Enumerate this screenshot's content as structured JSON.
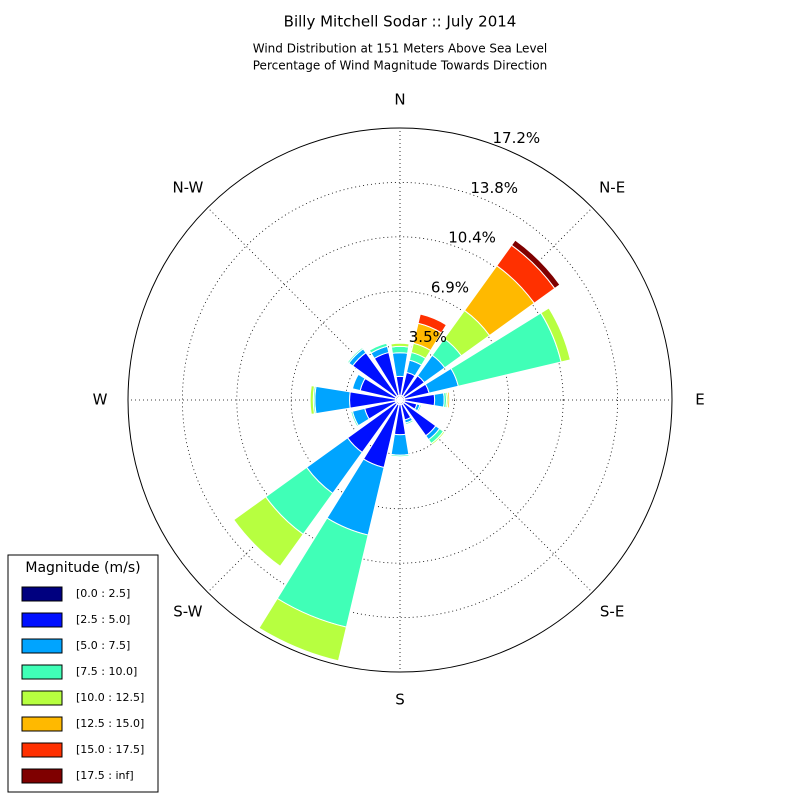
{
  "chart_data": {
    "type": "windrose",
    "title": "Billy Mitchell Sodar :: July 2014",
    "subtitle": [
      "Wind Distribution at 151 Meters Above Sea Level",
      "Percentage of Wind Magnitude Towards Direction"
    ],
    "x": [
      0,
      22.5,
      45,
      67.5,
      90,
      112.5,
      135,
      157.5,
      180,
      202.5,
      225,
      247.5,
      270,
      292.5,
      315,
      337.5
    ],
    "thetaticks": [
      {
        "value": 0,
        "label": "N"
      },
      {
        "value": 45,
        "label": "N-E"
      },
      {
        "value": 90,
        "label": "E"
      },
      {
        "value": 135,
        "label": "S-E"
      },
      {
        "value": 180,
        "label": "S"
      },
      {
        "value": 225,
        "label": "S-W"
      },
      {
        "value": 270,
        "label": "W"
      },
      {
        "value": 315,
        "label": "N-W"
      }
    ],
    "rlim": [
      0,
      17.25
    ],
    "rticks": [
      {
        "value": 3.45,
        "label": "3.5%"
      },
      {
        "value": 6.9,
        "label": "6.9%"
      },
      {
        "value": 10.35,
        "label": "10.4%"
      },
      {
        "value": 13.8,
        "label": "13.8%"
      },
      {
        "value": 17.25,
        "label": "17.2%"
      }
    ],
    "legend_title": "Magnitude (m/s)",
    "legend": "lower left",
    "series": [
      {
        "name": "[0.0 : 2.5]",
        "color": "#00007f",
        "values": [
          0.3,
          0.3,
          0.3,
          0.3,
          0.3,
          0.3,
          0.3,
          0.3,
          0.3,
          0.3,
          0.3,
          0.3,
          0.3,
          0.3,
          0.3,
          0.3
        ]
      },
      {
        "name": "[2.5 : 5.0]",
        "color": "#0010ff",
        "values": [
          1.2,
          1.5,
          1.6,
          1.6,
          1.9,
          0.8,
          2.5,
          1.0,
          1.9,
          4.1,
          3.8,
          2.0,
          2.9,
          2.3,
          3.4,
          2.8
        ]
      },
      {
        "name": "[5.0 : 7.5]",
        "color": "#00a4ff",
        "values": [
          1.5,
          0.8,
          1.6,
          1.9,
          0.6,
          0.2,
          0.3,
          0.2,
          1.3,
          4.4,
          3.2,
          0.8,
          2.2,
          0.5,
          0.3,
          0.4
        ]
      },
      {
        "name": "[7.5 : 10.0]",
        "color": "#40ffb7",
        "values": [
          0.4,
          0.5,
          1.3,
          6.7,
          0.15,
          0.1,
          0.3,
          0.1,
          0.1,
          6.0,
          3.2,
          0.1,
          0.1,
          0,
          0.1,
          0.2
        ]
      },
      {
        "name": "[10.0 : 12.5]",
        "color": "#b7ff40",
        "values": [
          0.2,
          0.6,
          2.2,
          0.6,
          0.1,
          0.05,
          0.1,
          0,
          0,
          2.2,
          2.5,
          0,
          0.2,
          0,
          0,
          0
        ]
      },
      {
        "name": "[12.5 : 15.0]",
        "color": "#ffb900",
        "values": [
          0,
          1.3,
          3.5,
          0,
          0.1,
          0,
          0,
          0,
          0,
          0,
          0,
          0,
          0,
          0,
          0,
          0
        ]
      },
      {
        "name": "[15.0 : 17.5]",
        "color": "#ff3000",
        "values": [
          0,
          0.6,
          1.6,
          0,
          0,
          0,
          0,
          0,
          0,
          0,
          0,
          0,
          0,
          0,
          0,
          0
        ]
      },
      {
        "name": "[17.5 : inf]",
        "color": "#7f0000",
        "values": [
          0,
          0,
          0.4,
          0,
          0,
          0,
          0,
          0,
          0,
          0,
          0,
          0,
          0,
          0,
          0,
          0
        ]
      }
    ]
  }
}
